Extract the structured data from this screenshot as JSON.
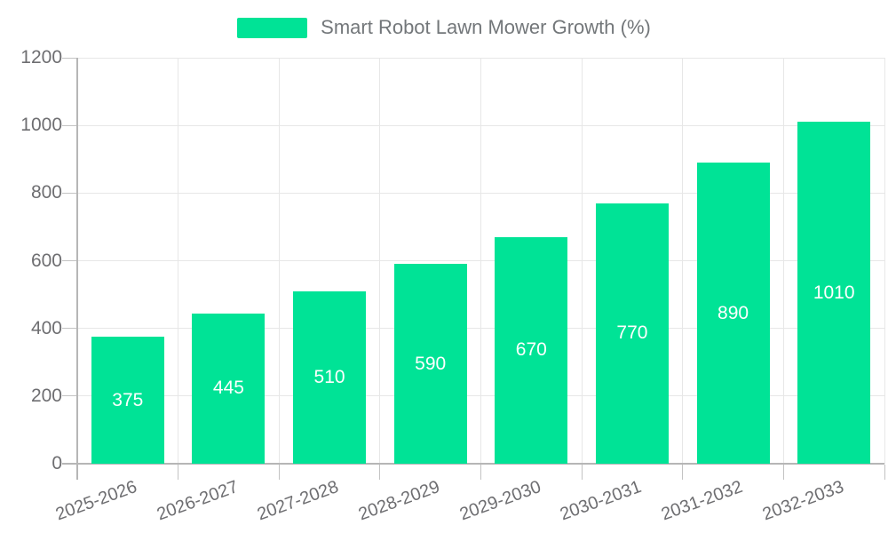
{
  "chart_data": {
    "type": "bar",
    "title": "Smart Robot Lawn Mower Growth (%)",
    "series": [
      {
        "name": "Smart Robot Lawn Mower Growth (%)",
        "values": [
          375,
          445,
          510,
          590,
          670,
          770,
          890,
          1010
        ]
      }
    ],
    "categories": [
      "2025-2026",
      "2026-2027",
      "2027-2028",
      "2028-2029",
      "2029-2030",
      "2030-2031",
      "2031-2032",
      "2032-2033"
    ],
    "data_labels": [
      "375",
      "445",
      "510",
      "590",
      "670",
      "770",
      "890",
      "1010"
    ],
    "xlabel": "",
    "ylabel": "",
    "ylim": [
      0,
      1200
    ],
    "yticks": [
      "0",
      "200",
      "400",
      "600",
      "800",
      "1000",
      "1200"
    ],
    "grid": "on",
    "legend_position": "top",
    "colors": {
      "bar": "#00E396",
      "value_label": "#ffffff",
      "axis_label": "#6e6e71",
      "gridline": "#e7e7e7",
      "axis_line": "#b6b6b6",
      "legend_text": "#73777a"
    }
  }
}
